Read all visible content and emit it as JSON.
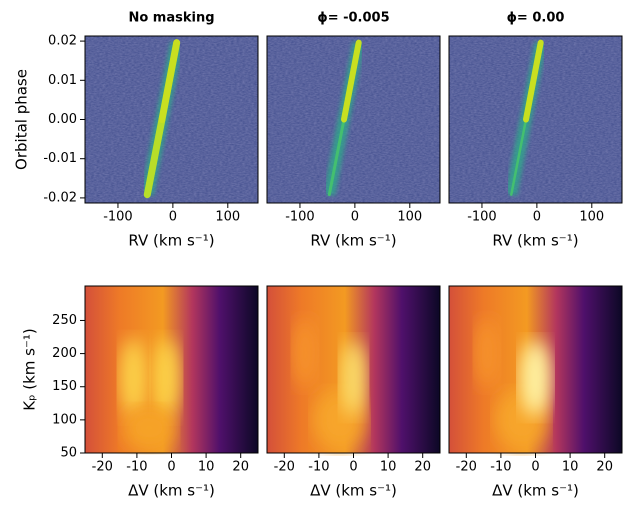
{
  "chart_data": [
    {
      "type": "heatmap",
      "title": "No masking",
      "xlabel": "RV (km s⁻¹)",
      "ylabel": "Orbital phase",
      "xlim": [
        -160,
        155
      ],
      "ylim": [
        -0.0213,
        0.0213
      ],
      "xticks": [
        -100,
        0,
        100
      ],
      "yticks": [
        0.02,
        0.01,
        {
          "value": 0,
          "label": "0.00"
        },
        -0.01,
        -0.02
      ]
    },
    {
      "type": "heatmap",
      "title": "ϕ= -0.005",
      "xlabel": "RV (km s⁻¹)",
      "xlim": [
        -160,
        155
      ],
      "ylim": [
        -0.0213,
        0.0213
      ],
      "xticks": [
        -100,
        0,
        100
      ]
    },
    {
      "type": "heatmap",
      "title": "ϕ= 0.00",
      "xlabel": "RV (km s⁻¹)",
      "xlim": [
        -160,
        155
      ],
      "ylim": [
        -0.0213,
        0.0213
      ],
      "xticks": [
        -100,
        0,
        100
      ]
    },
    {
      "type": "heatmap",
      "xlabel": "ΔV (km s⁻¹)",
      "ylabel": "Kₚ (km s⁻¹)",
      "xlim": [
        -25,
        25
      ],
      "ylim": [
        50,
        302
      ],
      "xticks": [
        -20,
        -10,
        0,
        10,
        20
      ],
      "yticks": [
        50,
        100,
        150,
        200,
        250
      ]
    },
    {
      "type": "heatmap",
      "xlabel": "ΔV (km s⁻¹)",
      "xlim": [
        -25,
        25
      ],
      "ylim": [
        50,
        302
      ],
      "xticks": [
        -20,
        -10,
        0,
        10,
        20
      ]
    },
    {
      "type": "heatmap",
      "xlabel": "ΔV (km s⁻¹)",
      "xlim": [
        -25,
        25
      ],
      "ylim": [
        50,
        302
      ],
      "xticks": [
        -20,
        -10,
        0,
        10,
        20
      ]
    }
  ]
}
